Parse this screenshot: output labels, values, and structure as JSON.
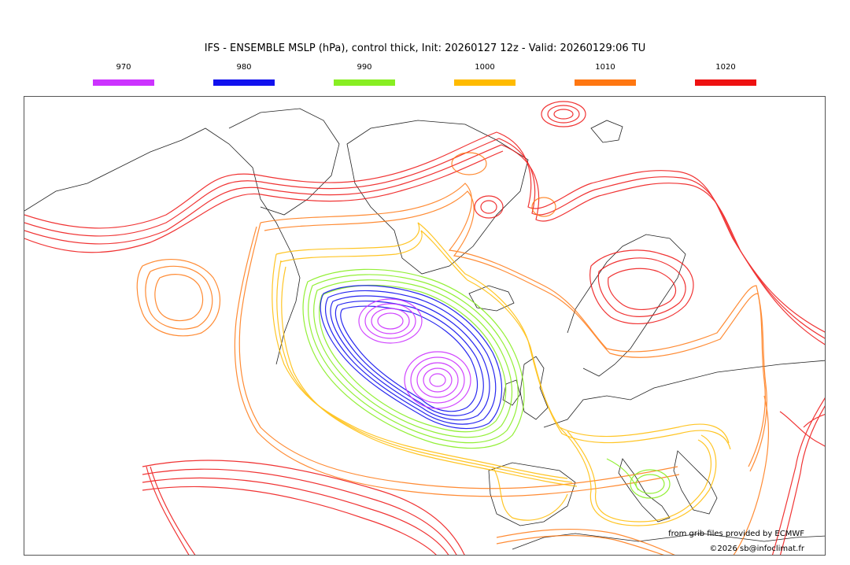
{
  "title": "IFS - ENSEMBLE MSLP (hPa), control thick, Init: 20260127 12z - Valid: 20260129:06 TU",
  "legend": [
    {
      "label": "970",
      "color": "#cc33ff"
    },
    {
      "label": "980",
      "color": "#1111ee"
    },
    {
      "label": "990",
      "color": "#88ee22"
    },
    {
      "label": "1000",
      "color": "#ffbb00"
    },
    {
      "label": "1010",
      "color": "#ff7711"
    },
    {
      "label": "1020",
      "color": "#ee1111"
    }
  ],
  "credits": {
    "line1": "from grib files provided by ECMWF",
    "line2": "©2026 sb@infoclimat.fr"
  },
  "icons": {
    "map": "ensemble-mslp-map"
  }
}
